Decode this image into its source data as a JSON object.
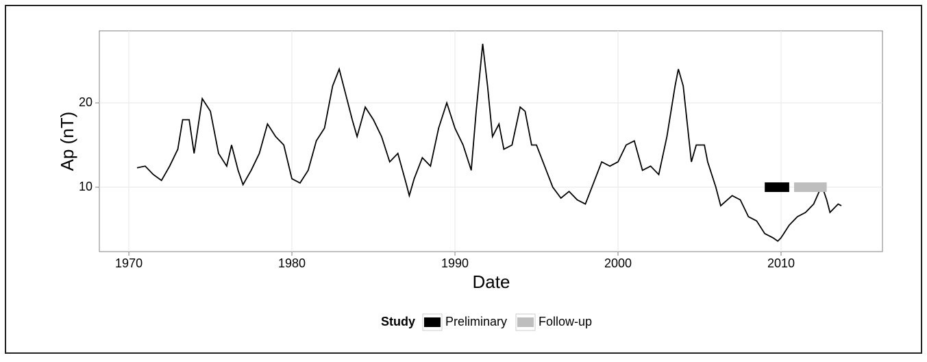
{
  "chart_data": {
    "type": "line",
    "xlabel": "Date",
    "ylabel": "Ap (nT)",
    "xlim": [
      1968.19,
      2016.22
    ],
    "ylim": [
      2.36,
      28.54
    ],
    "xticks": [
      1970,
      1980,
      1990,
      2000,
      2010
    ],
    "yticks": [
      10,
      20
    ],
    "grid": true,
    "x": [
      1970.5,
      1971.0,
      1971.5,
      1972.0,
      1972.5,
      1973.0,
      1973.3,
      1973.7,
      1974.0,
      1974.5,
      1975.0,
      1975.5,
      1976.0,
      1976.3,
      1976.7,
      1977.0,
      1977.5,
      1978.0,
      1978.5,
      1979.0,
      1979.5,
      1980.0,
      1980.5,
      1981.0,
      1981.5,
      1982.0,
      1982.5,
      1982.9,
      1983.3,
      1983.7,
      1984.0,
      1984.5,
      1985.0,
      1985.5,
      1986.0,
      1986.5,
      1987.0,
      1987.2,
      1987.5,
      1988.0,
      1988.5,
      1989.0,
      1989.5,
      1990.0,
      1990.5,
      1991.0,
      1991.3,
      1991.7,
      1992.0,
      1992.3,
      1992.7,
      1993.0,
      1993.5,
      1994.0,
      1994.3,
      1994.7,
      1995.0,
      1995.5,
      1996.0,
      1996.5,
      1997.0,
      1997.5,
      1998.0,
      1998.5,
      1999.0,
      1999.5,
      2000.0,
      2000.5,
      2001.0,
      2001.5,
      2002.0,
      2002.5,
      2003.0,
      2003.5,
      2003.7,
      2004.0,
      2004.5,
      2004.8,
      2005.3,
      2005.5,
      2006.0,
      2006.3,
      2007.0,
      2007.5,
      2008.0,
      2008.5,
      2009.0,
      2009.5,
      2009.8,
      2010.0,
      2010.5,
      2011.0,
      2011.5,
      2012.0,
      2012.5,
      2012.8,
      2013.0,
      2013.5,
      2013.7
    ],
    "series": [
      {
        "color": "#000000",
        "values": [
          12.3,
          12.5,
          11.5,
          10.8,
          12.5,
          14.5,
          18,
          18,
          14,
          20.5,
          19,
          14,
          12.5,
          15,
          12,
          10.3,
          12,
          14,
          17.5,
          16,
          15,
          11,
          10.5,
          12,
          15.5,
          17,
          22,
          24,
          21,
          18,
          16,
          19.5,
          18,
          16,
          13,
          14,
          10.5,
          9,
          11,
          13.5,
          12.5,
          17,
          20,
          17,
          15,
          12,
          19,
          27,
          22,
          16,
          17.5,
          14.5,
          15,
          19.5,
          19,
          15,
          15,
          12.5,
          10,
          8.7,
          9.5,
          8.5,
          8,
          10.5,
          13,
          12.5,
          13,
          15,
          15.5,
          12,
          12.5,
          11.5,
          16,
          22,
          24,
          22,
          13,
          15,
          15,
          13,
          10,
          7.8,
          9,
          8.5,
          6.5,
          6,
          4.5,
          4,
          3.6,
          4,
          5.5,
          6.5,
          7,
          8,
          10.2,
          8.5,
          7,
          8,
          7.8
        ]
      }
    ],
    "legend_title": "Study",
    "study": [
      {
        "name": "Preliminary",
        "color": "#000000",
        "start": 2009.0,
        "end": 2010.5,
        "value": 10
      },
      {
        "name": "Follow-up",
        "color": "#bebebe",
        "start": 2010.8,
        "end": 2012.8,
        "value": 10
      }
    ]
  }
}
